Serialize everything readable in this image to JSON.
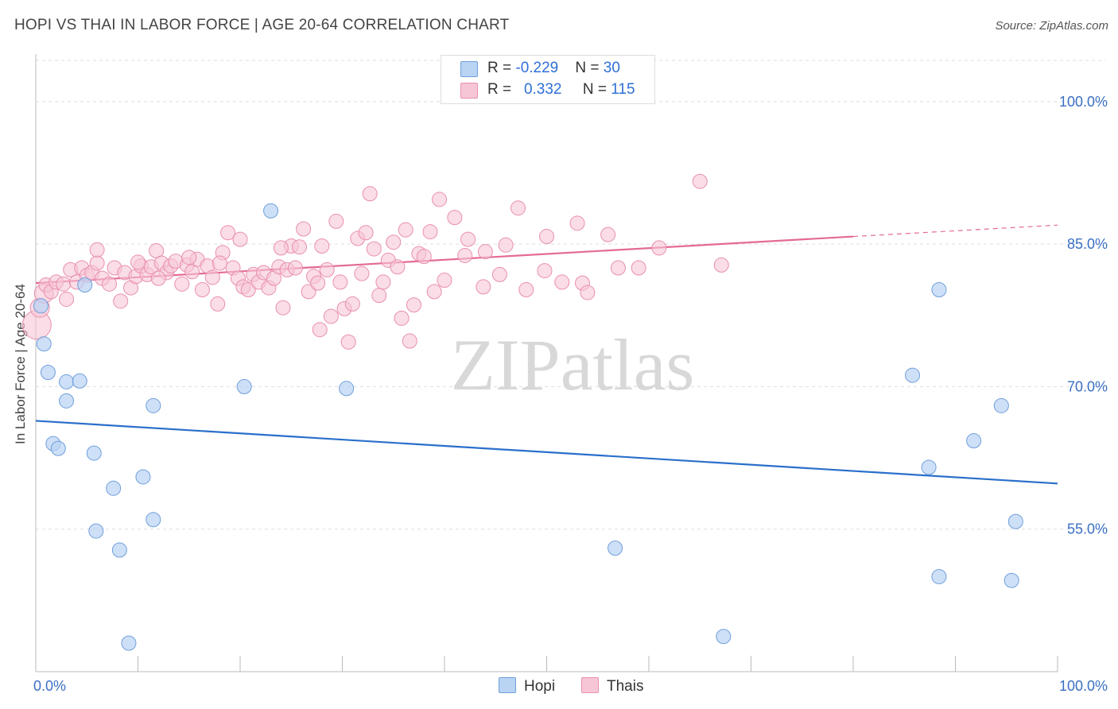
{
  "title": "HOPI VS THAI IN LABOR FORCE | AGE 20-64 CORRELATION CHART",
  "source": "Source: ZipAtlas.com",
  "watermark": "ZIPatlas",
  "colors": {
    "hopi_fill": "#b9d3f3",
    "hopi_stroke": "#6f9fdc",
    "hopi_line": "#2a6fcb",
    "thai_fill": "#f7c6d6",
    "thai_stroke": "#e98fae",
    "thai_line": "#e46a94",
    "axis_label": "#3a6fc4",
    "grid": "#dddddd"
  },
  "legend": {
    "hopi": {
      "r_label": "R = ",
      "r_value": "-0.229",
      "n_label": "N = ",
      "n_value": "30"
    },
    "thai": {
      "r_label": "R = ",
      "r_value": "0.332",
      "n_label": "N = ",
      "n_value": "115"
    }
  },
  "bottom_legend": {
    "hopi": "Hopi",
    "thai": "Thais"
  },
  "chart_data": {
    "type": "scatter",
    "xlabel": "",
    "ylabel": "In Labor Force | Age 20-64",
    "xlim": [
      0,
      100
    ],
    "ylim": [
      40,
      104
    ],
    "x_tick_labels": [
      {
        "value": 0,
        "label": "0.0%"
      },
      {
        "value": 100,
        "label": "100.0%"
      }
    ],
    "y_tick_labels": [
      {
        "value": 100,
        "label": "100.0%"
      },
      {
        "value": 85,
        "label": "85.0%"
      },
      {
        "value": 70,
        "label": "70.0%"
      },
      {
        "value": 55,
        "label": "55.0%"
      }
    ],
    "grid": true,
    "series": [
      {
        "name": "Hopi",
        "points": [
          [
            0.5,
            78.5
          ],
          [
            0.8,
            74.5
          ],
          [
            1.2,
            71.5
          ],
          [
            3.0,
            70.5
          ],
          [
            4.3,
            70.6
          ],
          [
            3.0,
            68.5
          ],
          [
            1.7,
            64.0
          ],
          [
            2.2,
            63.5
          ],
          [
            5.7,
            63.0
          ],
          [
            10.5,
            60.5
          ],
          [
            7.6,
            59.3
          ],
          [
            11.5,
            68.0
          ],
          [
            4.8,
            80.7
          ],
          [
            20.4,
            70.0
          ],
          [
            23.0,
            88.5
          ],
          [
            30.4,
            69.8
          ],
          [
            11.5,
            56.0
          ],
          [
            5.9,
            54.8
          ],
          [
            8.2,
            52.8
          ],
          [
            9.1,
            43.0
          ],
          [
            56.7,
            53.0
          ],
          [
            67.3,
            43.7
          ],
          [
            88.4,
            80.2
          ],
          [
            85.8,
            71.2
          ],
          [
            87.4,
            61.5
          ],
          [
            94.5,
            68.0
          ],
          [
            91.8,
            64.3
          ],
          [
            95.9,
            55.8
          ],
          [
            88.4,
            50.0
          ],
          [
            95.5,
            49.6
          ]
        ],
        "trend": {
          "x0": 0,
          "y0": 66.4,
          "x1": 100,
          "y1": 59.8
        }
      },
      {
        "name": "Thais",
        "points": [
          [
            0.1,
            76.5
          ],
          [
            0.4,
            78.3
          ],
          [
            0.8,
            79.8
          ],
          [
            1.0,
            80.7
          ],
          [
            1.5,
            80.0
          ],
          [
            2.0,
            81.0
          ],
          [
            2.7,
            80.8
          ],
          [
            3.0,
            79.2
          ],
          [
            3.4,
            82.3
          ],
          [
            4.0,
            81.0
          ],
          [
            4.5,
            82.5
          ],
          [
            5.0,
            81.7
          ],
          [
            5.5,
            82.0
          ],
          [
            6.0,
            83.0
          ],
          [
            6.5,
            81.4
          ],
          [
            7.2,
            80.8
          ],
          [
            7.7,
            82.5
          ],
          [
            8.3,
            79.0
          ],
          [
            8.7,
            82.0
          ],
          [
            9.3,
            80.4
          ],
          [
            9.8,
            81.6
          ],
          [
            10.3,
            82.7
          ],
          [
            10.9,
            81.8
          ],
          [
            11.3,
            82.6
          ],
          [
            11.8,
            84.3
          ],
          [
            12.3,
            83.0
          ],
          [
            12.8,
            82.0
          ],
          [
            13.2,
            82.7
          ],
          [
            13.7,
            83.2
          ],
          [
            14.3,
            80.8
          ],
          [
            14.8,
            82.8
          ],
          [
            15.3,
            82.1
          ],
          [
            15.8,
            83.4
          ],
          [
            16.3,
            80.2
          ],
          [
            16.8,
            82.7
          ],
          [
            17.3,
            81.5
          ],
          [
            17.8,
            78.7
          ],
          [
            18.3,
            84.1
          ],
          [
            18.8,
            86.2
          ],
          [
            19.3,
            82.5
          ],
          [
            19.8,
            81.4
          ],
          [
            20.3,
            80.5
          ],
          [
            20.8,
            80.2
          ],
          [
            21.3,
            81.8
          ],
          [
            21.8,
            81.0
          ],
          [
            22.3,
            82.0
          ],
          [
            22.8,
            80.4
          ],
          [
            23.3,
            81.4
          ],
          [
            23.8,
            82.6
          ],
          [
            24.2,
            78.3
          ],
          [
            24.6,
            82.3
          ],
          [
            25.0,
            84.8
          ],
          [
            25.4,
            82.5
          ],
          [
            25.8,
            84.7
          ],
          [
            26.2,
            86.6
          ],
          [
            26.7,
            80.0
          ],
          [
            27.2,
            81.6
          ],
          [
            27.6,
            80.9
          ],
          [
            28.0,
            84.8
          ],
          [
            28.5,
            82.3
          ],
          [
            28.9,
            77.4
          ],
          [
            29.4,
            87.4
          ],
          [
            29.8,
            81.0
          ],
          [
            30.2,
            78.2
          ],
          [
            30.6,
            74.7
          ],
          [
            31.0,
            78.7
          ],
          [
            31.5,
            85.6
          ],
          [
            31.9,
            81.9
          ],
          [
            32.3,
            86.2
          ],
          [
            32.7,
            90.3
          ],
          [
            33.1,
            84.5
          ],
          [
            33.6,
            79.6
          ],
          [
            34.0,
            81.0
          ],
          [
            34.5,
            83.3
          ],
          [
            35.0,
            85.2
          ],
          [
            35.4,
            82.6
          ],
          [
            35.8,
            77.2
          ],
          [
            36.2,
            86.5
          ],
          [
            36.6,
            74.8
          ],
          [
            37.0,
            78.6
          ],
          [
            37.5,
            84.0
          ],
          [
            38.0,
            83.7
          ],
          [
            38.6,
            86.3
          ],
          [
            39.0,
            80.0
          ],
          [
            39.5,
            89.7
          ],
          [
            40.0,
            81.2
          ],
          [
            41.0,
            87.8
          ],
          [
            42.3,
            85.5
          ],
          [
            43.8,
            80.5
          ],
          [
            45.4,
            81.8
          ],
          [
            47.2,
            88.8
          ],
          [
            49.8,
            82.2
          ],
          [
            51.5,
            81.0
          ],
          [
            53.5,
            80.9
          ],
          [
            57.0,
            82.5
          ],
          [
            59.0,
            82.5
          ],
          [
            65.0,
            91.6
          ],
          [
            67.1,
            82.8
          ],
          [
            56.0,
            86.0
          ],
          [
            27.8,
            76.0
          ],
          [
            24.0,
            84.6
          ],
          [
            20.0,
            85.5
          ],
          [
            18.0,
            83.0
          ],
          [
            15.0,
            83.6
          ],
          [
            12.0,
            81.4
          ],
          [
            10.0,
            83.1
          ],
          [
            6.0,
            84.4
          ],
          [
            50.0,
            85.8
          ],
          [
            48.0,
            80.2
          ],
          [
            44.0,
            84.2
          ],
          [
            42.0,
            83.8
          ],
          [
            46.0,
            84.9
          ],
          [
            53.0,
            87.2
          ],
          [
            54.0,
            79.9
          ],
          [
            61.0,
            84.6
          ]
        ],
        "trend": {
          "x0": 0,
          "y0": 80.9,
          "x1": 80,
          "y1": 85.8,
          "dash_to_x": 100,
          "dash_to_y": 87.0
        }
      }
    ]
  }
}
